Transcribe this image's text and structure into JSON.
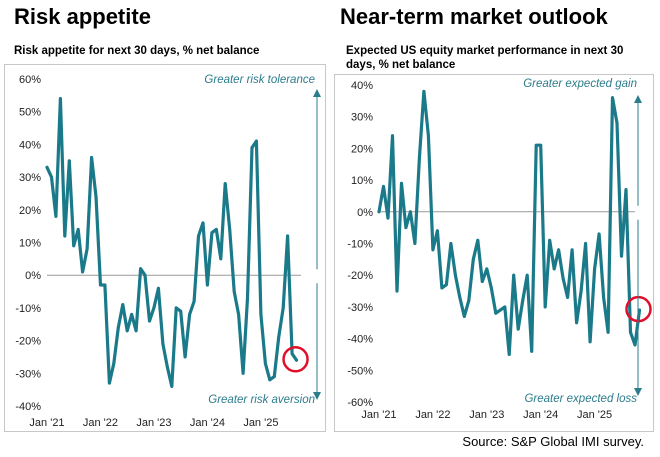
{
  "source": "Source: S&P Global IMI survey.",
  "colors": {
    "line": "#1b7a8a",
    "arrow": "#2c7c8c",
    "highlight": "#e0102c",
    "zero_line": "#9a9a9a"
  },
  "chart_data": [
    {
      "type": "line",
      "title": "Risk appetite",
      "subtitle": "Risk appetite for next 30 days, % net balance",
      "ylim": [
        -40,
        60
      ],
      "yticks": [
        -40,
        -30,
        -20,
        -10,
        0,
        10,
        20,
        30,
        40,
        50,
        60
      ],
      "ytick_labels": [
        "-40%",
        "-30%",
        "-20%",
        "-10%",
        "0%",
        "10%",
        "20%",
        "30%",
        "40%",
        "50%",
        "60%"
      ],
      "xlim": [
        0,
        57
      ],
      "xticks": [
        0,
        12,
        24,
        36,
        48
      ],
      "xtick_labels": [
        "Jan '21",
        "Jan '22",
        "Jan '23",
        "Jan '24",
        "Jan '25"
      ],
      "annotations": {
        "top": "Greater risk tolerance",
        "bottom": "Greater risk aversion"
      },
      "series": [
        {
          "values": [
            33,
            30,
            18,
            54,
            12,
            35,
            9,
            14,
            1,
            8,
            36,
            24,
            -3,
            -3,
            -33,
            -27,
            -16,
            -9,
            -17,
            -12,
            -17,
            2,
            0,
            -14,
            -10,
            -4,
            -21,
            -28,
            -34,
            -10,
            -11,
            -25,
            -12,
            -8,
            12,
            16,
            -3,
            13,
            14,
            5,
            28,
            14,
            -5,
            -12,
            -30,
            -7,
            39,
            41,
            -12,
            -27,
            -32,
            -31,
            -19,
            -10,
            12,
            -24,
            -26
          ]
        }
      ]
    },
    {
      "type": "line",
      "title": "Near-term market outlook",
      "subtitle": "Expected US equity market performance in next 30 days, % net balance",
      "ylim": [
        -60,
        40
      ],
      "yticks": [
        -60,
        -50,
        -40,
        -30,
        -20,
        -10,
        0,
        10,
        20,
        30,
        40
      ],
      "ytick_labels": [
        "-60%",
        "-50%",
        "-40%",
        "-30%",
        "-20%",
        "-10%",
        "0%",
        "10%",
        "20%",
        "30%",
        "40%"
      ],
      "xlim": [
        0,
        57
      ],
      "xticks": [
        0,
        12,
        24,
        36,
        48
      ],
      "xtick_labels": [
        "Jan '21",
        "Jan '22",
        "Jan '23",
        "Jan '24",
        "Jan '25"
      ],
      "annotations": {
        "top": "Greater expected gain",
        "bottom": "Greater   expected loss"
      },
      "series": [
        {
          "values": [
            0,
            8,
            -2,
            24,
            -25,
            9,
            -5,
            0,
            -10,
            17,
            38,
            24,
            -12,
            -6,
            -24,
            -23,
            -10,
            -20,
            -27,
            -33,
            -28,
            -15,
            -9,
            -22,
            -18,
            -24,
            -32,
            -31,
            -30,
            -45,
            -20,
            -37,
            -28,
            -20,
            -44,
            21,
            21,
            -30,
            -9,
            -18,
            -12,
            -21,
            -27,
            -12,
            -35,
            -25,
            -10,
            -41,
            -18,
            -7,
            -27,
            -38,
            36,
            28,
            -14,
            7,
            -38,
            -42,
            -31
          ]
        }
      ]
    }
  ]
}
